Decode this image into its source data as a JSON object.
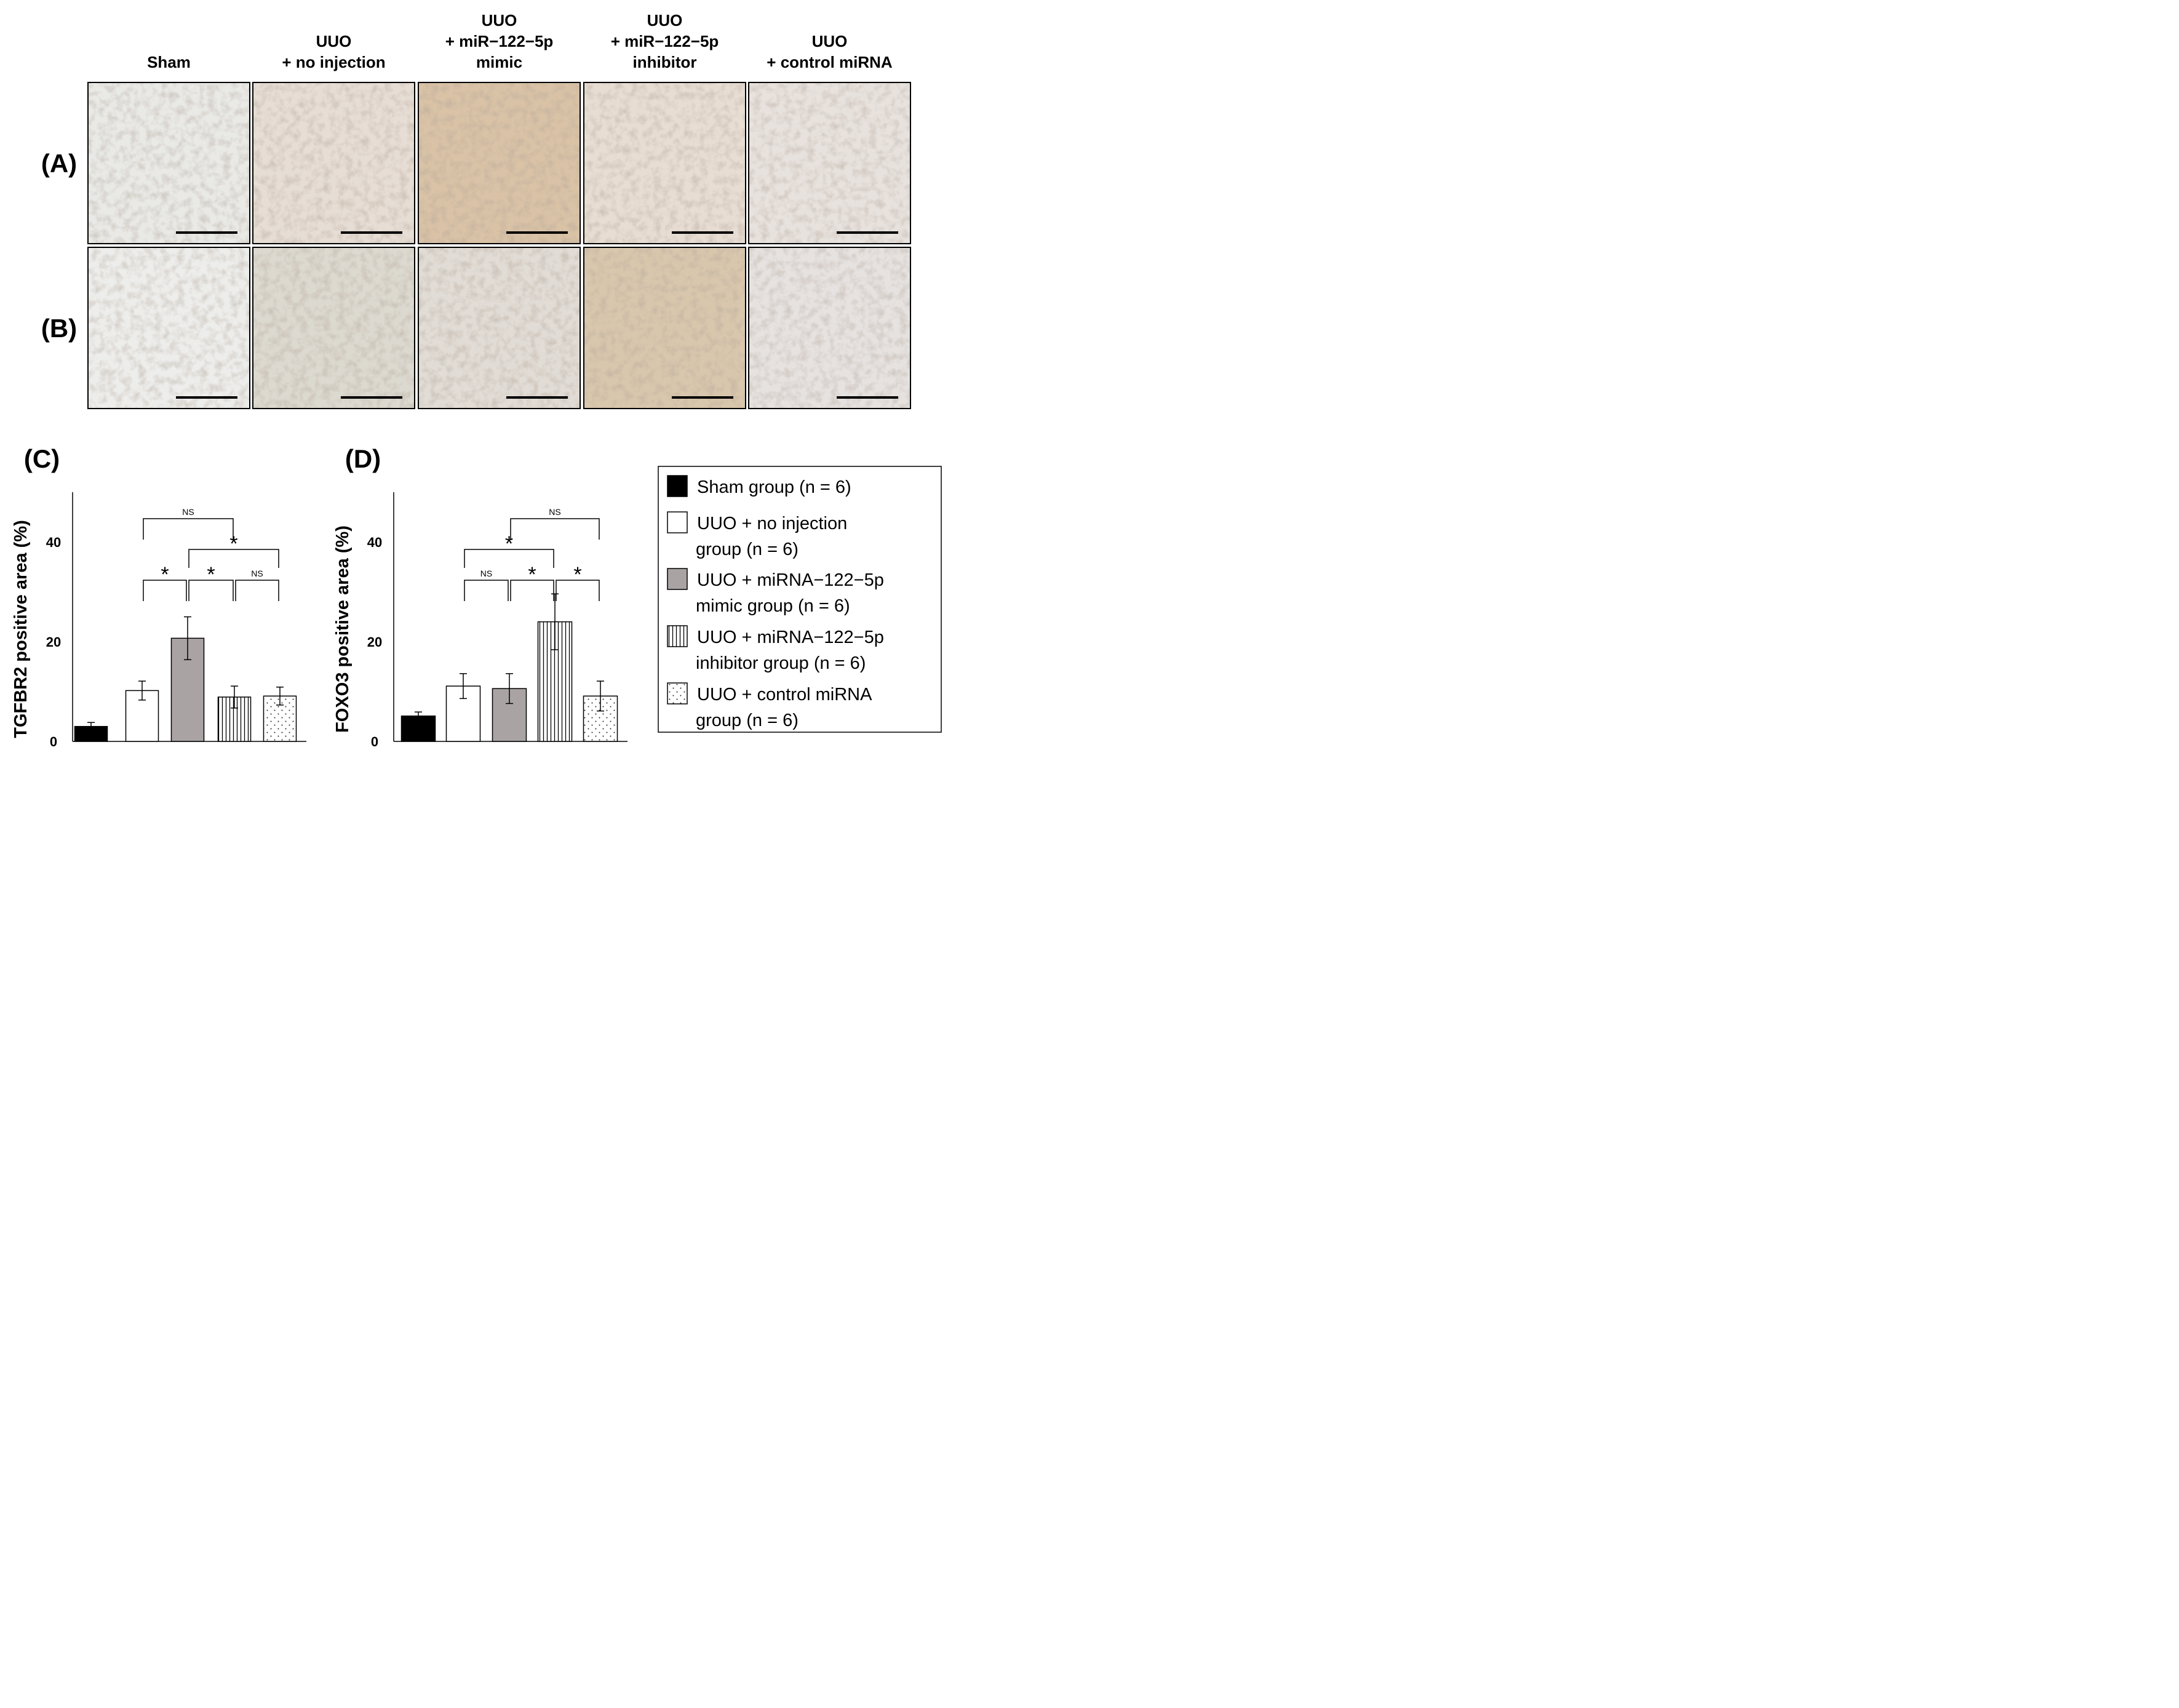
{
  "figure": {
    "columns": [
      {
        "lines": [
          "Sham"
        ]
      },
      {
        "lines": [
          "UUO",
          "+ no injection"
        ]
      },
      {
        "lines": [
          "UUO",
          "+ miR−122−5p",
          "mimic"
        ]
      },
      {
        "lines": [
          "UUO",
          "+ miR−122−5p",
          "inhibitor"
        ]
      },
      {
        "lines": [
          "UUO",
          "+ control miRNA"
        ]
      }
    ],
    "micrograph_rows": [
      {
        "label": "(A)",
        "tints": [
          "#e9e9e6",
          "#e6ddd4",
          "#d9c2a6",
          "#e7ddd3",
          "#e8e2de"
        ]
      },
      {
        "label": "(B)",
        "tints": [
          "#ededeb",
          "#dcd9d0",
          "#e1dcd5",
          "#d9c7ad",
          "#e6e2e0"
        ]
      }
    ]
  },
  "chart_data": [
    {
      "type": "bar",
      "panel": "(C)",
      "title": "",
      "xlabel": "",
      "ylabel": "TGFBR2 positive area (%)",
      "ylim": [
        0,
        50
      ],
      "yticks": [
        0,
        20,
        40
      ],
      "categories": [
        "Sham group (n = 6)",
        "UUO + no injection group (n = 6)",
        "UUO + miRNA−122−5p mimic group (n = 6)",
        "UUO + miRNA−122−5p inhibitor group (n = 6)",
        "UUO + control miRNA group (n = 6)"
      ],
      "values": [
        3.0,
        10.2,
        20.7,
        8.9,
        9.1
      ],
      "error": [
        0.8,
        1.9,
        4.3,
        2.2,
        1.8
      ],
      "fills": [
        "black",
        "white",
        "gray",
        "vertical-stripes",
        "dots"
      ],
      "annotations": [
        {
          "from": 1,
          "to": 2,
          "label": "*",
          "level": 1
        },
        {
          "from": 2,
          "to": 3,
          "label": "*",
          "level": 1
        },
        {
          "from": 3,
          "to": 4,
          "label": "NS",
          "level": 1
        },
        {
          "from": 2,
          "to": 4,
          "label": "*",
          "level": 2
        },
        {
          "from": 1,
          "to": 3,
          "label": "NS",
          "level": 3
        }
      ]
    },
    {
      "type": "bar",
      "panel": "(D)",
      "title": "",
      "xlabel": "",
      "ylabel": "FOXO3 positive area (%)",
      "ylim": [
        0,
        50
      ],
      "yticks": [
        0,
        20,
        40
      ],
      "categories": [
        "Sham group (n = 6)",
        "UUO + no injection group (n = 6)",
        "UUO + miRNA−122−5p mimic group (n = 6)",
        "UUO + miRNA−122−5p inhibitor group (n = 6)",
        "UUO + control miRNA group (n = 6)"
      ],
      "values": [
        5.1,
        11.1,
        10.6,
        24.0,
        9.1
      ],
      "error": [
        0.8,
        2.5,
        3.0,
        5.6,
        3.0
      ],
      "fills": [
        "black",
        "white",
        "gray",
        "vertical-stripes",
        "dots"
      ],
      "annotations": [
        {
          "from": 1,
          "to": 2,
          "label": "NS",
          "level": 1
        },
        {
          "from": 2,
          "to": 3,
          "label": "*",
          "level": 1
        },
        {
          "from": 3,
          "to": 4,
          "label": "*",
          "level": 1
        },
        {
          "from": 1,
          "to": 3,
          "label": "*",
          "level": 2
        },
        {
          "from": 2,
          "to": 4,
          "label": "NS",
          "level": 3
        }
      ]
    }
  ],
  "legend": {
    "items": [
      {
        "fill": "black",
        "lines": [
          "Sham group (n = 6)"
        ]
      },
      {
        "fill": "white",
        "lines": [
          "UUO + no injection",
          "group (n = 6)"
        ]
      },
      {
        "fill": "gray",
        "lines": [
          "UUO + miRNA−122−5p",
          "mimic group (n = 6)"
        ]
      },
      {
        "fill": "vertical-stripes",
        "lines": [
          "UUO + miRNA−122−5p",
          "inhibitor group (n = 6)"
        ]
      },
      {
        "fill": "dots",
        "lines": [
          "UUO + control miRNA",
          "group (n = 6)"
        ]
      }
    ]
  },
  "colors": {
    "gray_fill": "#a9a4a3",
    "black_fill": "#000000",
    "axis": "#000000"
  }
}
